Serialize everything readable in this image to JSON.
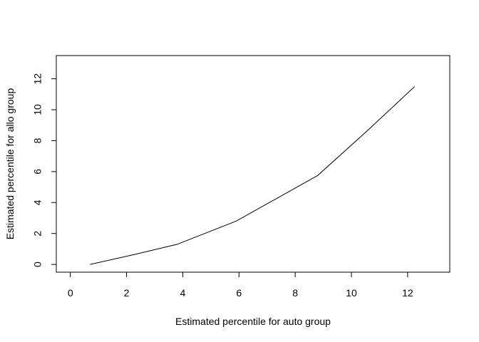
{
  "chart_data": {
    "type": "line",
    "xlabel": "Estimated percentile for auto group",
    "ylabel": "Estimated percentile for allo group",
    "xlim": [
      -0.5,
      13.5
    ],
    "ylim": [
      -0.5,
      13.5
    ],
    "xticks": [
      0,
      2,
      4,
      6,
      8,
      10,
      12
    ],
    "yticks": [
      0,
      2,
      4,
      6,
      8,
      10,
      12
    ],
    "grid": false,
    "series": [
      {
        "x": [
          0.7,
          2.3,
          3.8,
          5.9,
          8.8,
          10.6,
          12.25
        ],
        "y": [
          0.0,
          0.65,
          1.3,
          2.8,
          5.75,
          8.7,
          11.5
        ],
        "color": "#000000"
      }
    ]
  }
}
